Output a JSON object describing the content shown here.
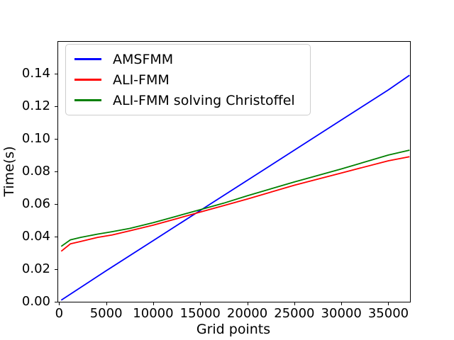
{
  "figure": {
    "background": "#ffffff",
    "spine_color": "#000000",
    "text_color": "#000000"
  },
  "chart_data": {
    "type": "line",
    "xlabel": "Grid points",
    "ylabel": "Time(s)",
    "xlim": [
      -100,
      37300
    ],
    "ylim": [
      0,
      0.1595
    ],
    "grid": false,
    "legend_position": "upper left",
    "x_ticks": [
      0,
      5000,
      10000,
      15000,
      20000,
      25000,
      30000,
      35000
    ],
    "x_tick_labels": [
      "0",
      "5000",
      "10000",
      "15000",
      "20000",
      "25000",
      "30000",
      "35000"
    ],
    "y_ticks": [
      0.0,
      0.02,
      0.04,
      0.06,
      0.08,
      0.1,
      0.12,
      0.14
    ],
    "y_tick_labels": [
      "0.00",
      "0.02",
      "0.04",
      "0.06",
      "0.08",
      "0.10",
      "0.12",
      "0.14"
    ],
    "series": [
      {
        "name": "AMSFMM",
        "color": "#0000ff",
        "points": [
          [
            225,
            0.001
          ],
          [
            5000,
            0.019
          ],
          [
            10000,
            0.0375
          ],
          [
            15000,
            0.056
          ],
          [
            20000,
            0.0745
          ],
          [
            25000,
            0.093
          ],
          [
            30000,
            0.1115
          ],
          [
            35000,
            0.13
          ],
          [
            37249,
            0.139
          ]
        ]
      },
      {
        "name": "ALI-FMM",
        "color": "#ff0000",
        "points": [
          [
            225,
            0.031
          ],
          [
            1200,
            0.0355
          ],
          [
            2300,
            0.037
          ],
          [
            4100,
            0.0395
          ],
          [
            5625,
            0.041
          ],
          [
            7500,
            0.0435
          ],
          [
            10000,
            0.047
          ],
          [
            12500,
            0.051
          ],
          [
            15000,
            0.055
          ],
          [
            17500,
            0.059
          ],
          [
            20000,
            0.063
          ],
          [
            25000,
            0.0715
          ],
          [
            30000,
            0.079
          ],
          [
            35000,
            0.0865
          ],
          [
            37249,
            0.089
          ]
        ]
      },
      {
        "name": "ALI-FMM solving Christoffel",
        "color": "#008000",
        "points": [
          [
            225,
            0.034
          ],
          [
            1200,
            0.038
          ],
          [
            2300,
            0.0395
          ],
          [
            4100,
            0.0415
          ],
          [
            5625,
            0.043
          ],
          [
            7500,
            0.045
          ],
          [
            10000,
            0.0485
          ],
          [
            12500,
            0.0525
          ],
          [
            15000,
            0.0565
          ],
          [
            17500,
            0.0605
          ],
          [
            20000,
            0.065
          ],
          [
            25000,
            0.0735
          ],
          [
            30000,
            0.0815
          ],
          [
            35000,
            0.09
          ],
          [
            37249,
            0.093
          ]
        ]
      }
    ]
  }
}
